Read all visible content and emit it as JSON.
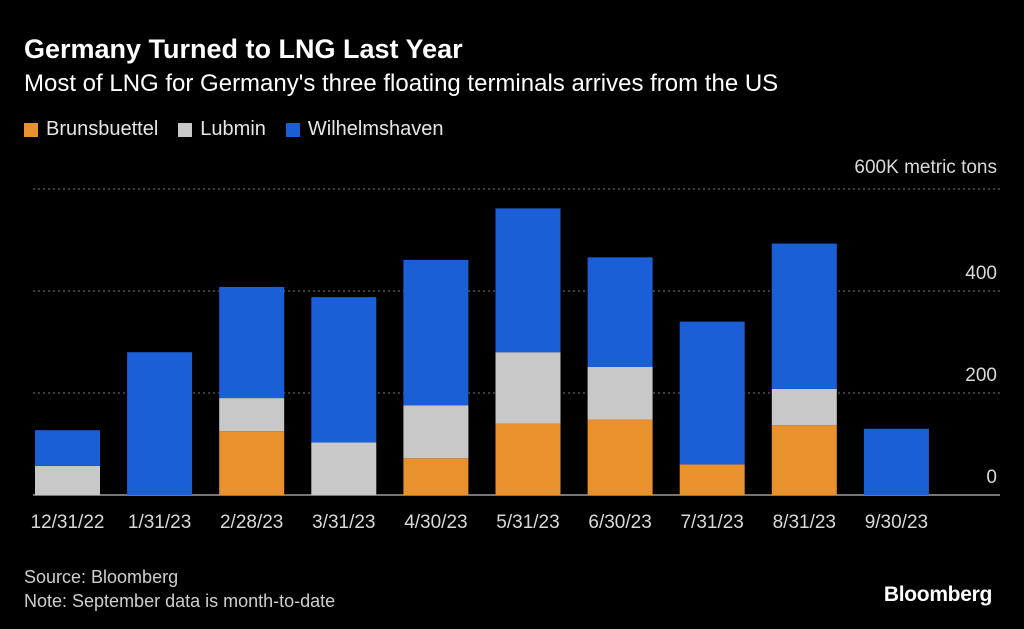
{
  "title": "Germany Turned to LNG Last Year",
  "subtitle": "Most of LNG for Germany's three floating terminals arrives from the US",
  "source": "Source: Bloomberg",
  "note": "Note: September data is month-to-date",
  "logo": "Bloomberg",
  "colors": {
    "Brunsbuettel": "#e8912d",
    "Lubmin": "#c8c8c8",
    "Wilhelmshaven": "#1a5fd6",
    "grid": "#7a7a7a"
  },
  "chart_data": {
    "type": "bar",
    "stacked": true,
    "unit_label": "600K metric tons",
    "categories": [
      "12/31/22",
      "1/31/23",
      "2/28/23",
      "3/31/23",
      "4/30/23",
      "5/31/23",
      "6/30/23",
      "7/31/23",
      "8/31/23",
      "9/30/23"
    ],
    "series": [
      {
        "name": "Brunsbuettel",
        "values": [
          0,
          0,
          125,
          0,
          72,
          140,
          148,
          60,
          137,
          0
        ]
      },
      {
        "name": "Lubmin",
        "values": [
          57,
          0,
          65,
          103,
          104,
          140,
          103,
          0,
          71,
          0
        ]
      },
      {
        "name": "Wilhelmshaven",
        "values": [
          70,
          280,
          218,
          285,
          285,
          282,
          215,
          280,
          285,
          130
        ]
      }
    ],
    "ylim": [
      0,
      600
    ],
    "yticks": [
      0,
      200,
      400
    ],
    "grid": true,
    "legend_position": "top-left"
  }
}
